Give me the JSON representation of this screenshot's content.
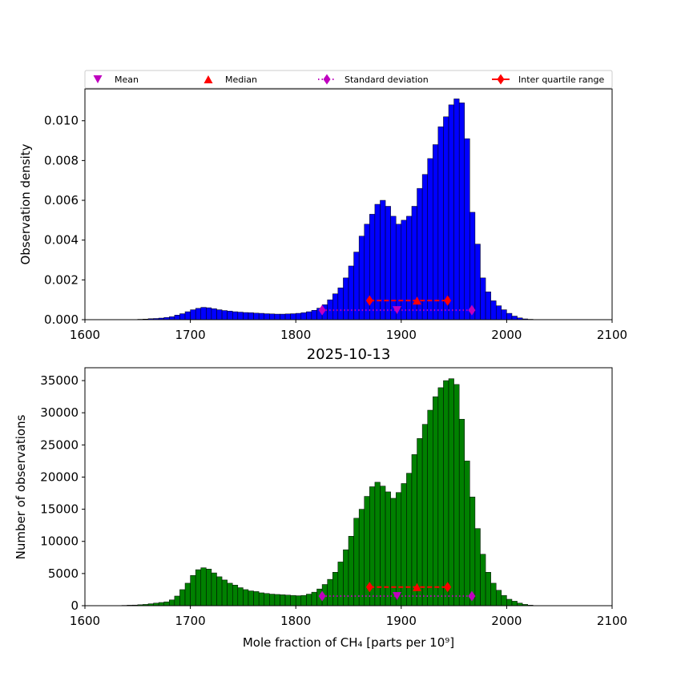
{
  "colors": {
    "top_bars": "#0000ff",
    "bottom_bars": "#008000",
    "mean": "#bf00bf",
    "median": "#ff0000",
    "std": "#bf00bf",
    "iqr": "#ff0000"
  },
  "legend": {
    "mean": "Mean",
    "median": "Median",
    "std": "Standard deviation",
    "iqr": "Inter quartile range",
    "placement": "above top panel, spanning width"
  },
  "chart_data": [
    {
      "type": "bar",
      "title": "",
      "xlabel": "",
      "ylabel": "Observation density",
      "xlim": [
        1600,
        2100
      ],
      "ylim": [
        0,
        0.0116
      ],
      "xticks": [
        "1600",
        "1700",
        "1800",
        "1900",
        "2000",
        "2100"
      ],
      "yticks": [
        "0.000",
        "0.002",
        "0.004",
        "0.006",
        "0.008",
        "0.010"
      ],
      "bin_start": 1635,
      "bin_width": 5,
      "values": [
        1e-05,
        1e-05,
        1e-05,
        2e-05,
        3e-05,
        5e-05,
        6e-05,
        8e-05,
        0.00011,
        0.00015,
        0.00023,
        0.0003,
        0.0004,
        0.0005,
        0.00057,
        0.00062,
        0.0006,
        0.00055,
        0.0005,
        0.00046,
        0.00043,
        0.0004,
        0.00038,
        0.00036,
        0.00035,
        0.00033,
        0.00032,
        0.0003,
        0.00029,
        0.00028,
        0.00028,
        0.00029,
        0.0003,
        0.00032,
        0.00035,
        0.0004,
        0.00047,
        0.00058,
        0.00075,
        0.001,
        0.0013,
        0.0016,
        0.0021,
        0.0027,
        0.0034,
        0.0042,
        0.0048,
        0.0053,
        0.0058,
        0.006,
        0.0057,
        0.0052,
        0.0048,
        0.005,
        0.0052,
        0.0057,
        0.0066,
        0.0073,
        0.0081,
        0.0088,
        0.0097,
        0.0102,
        0.0108,
        0.0111,
        0.0109,
        0.0091,
        0.0054,
        0.0038,
        0.0021,
        0.0014,
        0.00095,
        0.0007,
        0.0005,
        0.00032,
        0.00018,
        9e-05,
        4e-05,
        2e-05
      ],
      "markers": {
        "mean": {
          "x": 1896,
          "y": 0.00048
        },
        "median": {
          "x": 1915,
          "y": 0.00096
        },
        "std": {
          "low": 1825,
          "high": 1967,
          "y": 0.00048
        },
        "iqr": {
          "low": 1870,
          "high": 1944,
          "y": 0.00096
        }
      }
    },
    {
      "type": "bar",
      "title": "2025-10-13",
      "xlabel": "Mole fraction of CH₄ [parts per 10⁹]",
      "ylabel": "Number of observations",
      "xlim": [
        1600,
        2100
      ],
      "ylim": [
        0,
        37000
      ],
      "xticks": [
        "1600",
        "1700",
        "1800",
        "1900",
        "2000",
        "2100"
      ],
      "yticks": [
        "0",
        "5000",
        "10000",
        "15000",
        "20000",
        "25000",
        "30000",
        "35000"
      ],
      "bin_start": 1635,
      "bin_width": 5,
      "values": [
        50,
        80,
        100,
        150,
        200,
        300,
        400,
        500,
        600,
        900,
        1500,
        2500,
        3500,
        4700,
        5600,
        5900,
        5700,
        5100,
        4500,
        4000,
        3500,
        3200,
        2800,
        2500,
        2300,
        2200,
        2000,
        1900,
        1800,
        1750,
        1700,
        1650,
        1600,
        1550,
        1600,
        1800,
        2100,
        2600,
        3300,
        4100,
        5200,
        6800,
        8700,
        10800,
        13600,
        15000,
        17000,
        18500,
        19200,
        18600,
        17700,
        16700,
        17600,
        19000,
        20600,
        23500,
        26000,
        28200,
        30400,
        32500,
        33900,
        35000,
        35300,
        34400,
        29000,
        22500,
        16900,
        12000,
        8000,
        5200,
        3500,
        2400,
        1600,
        1000,
        700,
        400,
        200,
        80
      ],
      "markers": {
        "mean": {
          "x": 1896,
          "y": 1500
        },
        "median": {
          "x": 1915,
          "y": 2900
        },
        "std": {
          "low": 1825,
          "high": 1967,
          "y": 1500
        },
        "iqr": {
          "low": 1870,
          "high": 1944,
          "y": 2900
        }
      }
    }
  ]
}
